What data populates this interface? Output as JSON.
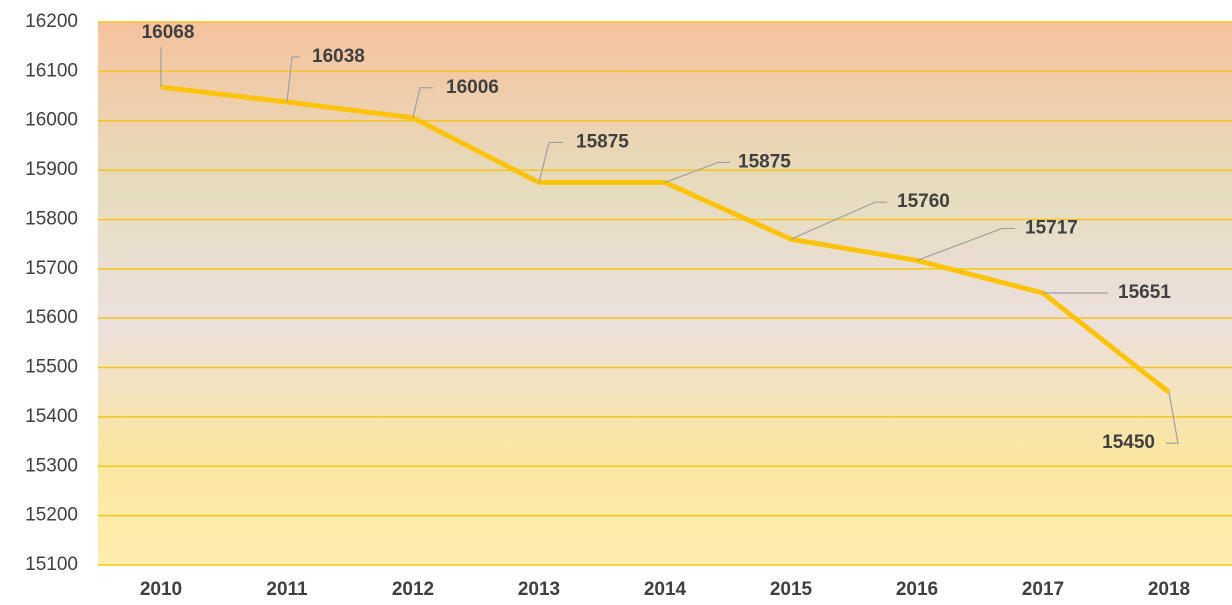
{
  "chart_data": {
    "type": "line",
    "categories": [
      "2010",
      "2011",
      "2012",
      "2013",
      "2014",
      "2015",
      "2016",
      "2017",
      "2018"
    ],
    "series": [
      {
        "color": "#fcc30c",
        "values": [
          16068,
          16038,
          16006,
          15875,
          15875,
          15760,
          15717,
          15651,
          15450
        ]
      }
    ],
    "ylim": [
      15100,
      16200
    ],
    "yticks": [
      15100,
      15200,
      15300,
      15400,
      15500,
      15600,
      15700,
      15800,
      15900,
      16000,
      16100,
      16200
    ],
    "grid": true
  }
}
